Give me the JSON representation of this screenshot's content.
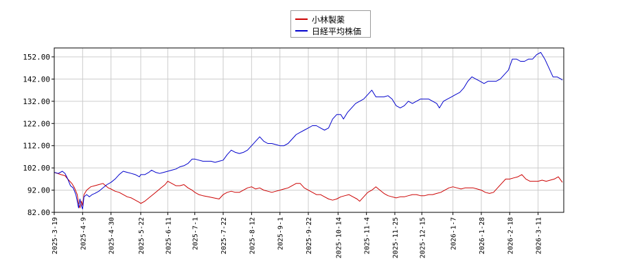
{
  "chart_data": {
    "type": "line",
    "legend_position": "top-center",
    "grid": true,
    "ylim": [
      82,
      156
    ],
    "yticks": [
      "82.00",
      "92.00",
      "102.00",
      "112.00",
      "122.00",
      "132.00",
      "142.00",
      "152.00"
    ],
    "ytick_values": [
      82,
      92,
      102,
      112,
      122,
      132,
      142,
      152
    ],
    "xtick_labels": [
      "2025-3-19",
      "2025-4-9",
      "2025-4-30",
      "2025-5-22",
      "2025-6-11",
      "2025-7-1",
      "2025-7-22",
      "2025-8-12",
      "2025-9-1",
      "2025-9-22",
      "2025-10-14",
      "2025-11-4",
      "2025-11-25",
      "2025-12-15",
      "2026-1-7",
      "2026-1-28",
      "2026-2-18",
      "2026-3-11"
    ],
    "xtick_positions": [
      0,
      21,
      42,
      64,
      84,
      104,
      125,
      146,
      167,
      188,
      210,
      231,
      252,
      272,
      295,
      316,
      337,
      358
    ],
    "x_max": 377,
    "series": [
      {
        "name": "小林製薬",
        "color": "#cc0000",
        "points": [
          [
            0,
            100
          ],
          [
            5,
            99
          ],
          [
            8,
            98.5
          ],
          [
            10,
            97
          ],
          [
            13,
            95
          ],
          [
            15,
            93
          ],
          [
            17,
            90
          ],
          [
            18,
            86
          ],
          [
            19,
            84
          ],
          [
            20,
            87
          ],
          [
            21,
            85
          ],
          [
            22,
            90
          ],
          [
            24,
            92
          ],
          [
            27,
            93.5
          ],
          [
            30,
            94
          ],
          [
            33,
            94.5
          ],
          [
            36,
            95
          ],
          [
            38,
            94
          ],
          [
            40,
            93
          ],
          [
            42,
            92.5
          ],
          [
            45,
            91.5
          ],
          [
            48,
            91
          ],
          [
            51,
            90
          ],
          [
            54,
            89
          ],
          [
            57,
            88.5
          ],
          [
            60,
            87.5
          ],
          [
            63,
            86.5
          ],
          [
            64,
            86
          ],
          [
            67,
            87
          ],
          [
            70,
            88.5
          ],
          [
            73,
            90
          ],
          [
            76,
            91.5
          ],
          [
            79,
            93
          ],
          [
            82,
            94.5
          ],
          [
            84,
            96
          ],
          [
            87,
            95
          ],
          [
            90,
            94
          ],
          [
            93,
            94
          ],
          [
            96,
            94.5
          ],
          [
            99,
            93
          ],
          [
            102,
            92
          ],
          [
            104,
            91
          ],
          [
            107,
            90
          ],
          [
            110,
            89.5
          ],
          [
            114,
            89
          ],
          [
            118,
            88.5
          ],
          [
            122,
            88
          ],
          [
            125,
            90
          ],
          [
            128,
            91
          ],
          [
            131,
            91.5
          ],
          [
            134,
            91
          ],
          [
            137,
            91
          ],
          [
            140,
            92
          ],
          [
            143,
            93
          ],
          [
            146,
            93.5
          ],
          [
            149,
            92.5
          ],
          [
            152,
            93
          ],
          [
            155,
            92
          ],
          [
            158,
            91.5
          ],
          [
            161,
            91
          ],
          [
            164,
            91.5
          ],
          [
            167,
            92
          ],
          [
            170,
            92.5
          ],
          [
            173,
            93
          ],
          [
            176,
            94
          ],
          [
            179,
            95
          ],
          [
            182,
            95
          ],
          [
            185,
            93
          ],
          [
            188,
            92
          ],
          [
            191,
            91
          ],
          [
            194,
            90
          ],
          [
            197,
            90
          ],
          [
            200,
            89
          ],
          [
            203,
            88
          ],
          [
            206,
            87.5
          ],
          [
            209,
            88
          ],
          [
            212,
            89
          ],
          [
            215,
            89.5
          ],
          [
            218,
            90
          ],
          [
            221,
            89
          ],
          [
            224,
            88
          ],
          [
            226,
            87
          ],
          [
            229,
            89
          ],
          [
            232,
            91
          ],
          [
            235,
            92
          ],
          [
            238,
            93.5
          ],
          [
            241,
            92
          ],
          [
            244,
            90.5
          ],
          [
            247,
            89.5
          ],
          [
            250,
            89
          ],
          [
            253,
            88.5
          ],
          [
            256,
            89
          ],
          [
            259,
            89
          ],
          [
            262,
            89.5
          ],
          [
            265,
            90
          ],
          [
            268,
            90
          ],
          [
            271,
            89.5
          ],
          [
            274,
            89.5
          ],
          [
            277,
            90
          ],
          [
            280,
            90
          ],
          [
            283,
            90.5
          ],
          [
            286,
            91
          ],
          [
            289,
            92
          ],
          [
            292,
            93
          ],
          [
            295,
            93.5
          ],
          [
            298,
            93
          ],
          [
            301,
            92.5
          ],
          [
            304,
            93
          ],
          [
            307,
            93
          ],
          [
            310,
            93
          ],
          [
            313,
            92.5
          ],
          [
            316,
            92
          ],
          [
            319,
            91
          ],
          [
            322,
            90.5
          ],
          [
            325,
            91
          ],
          [
            328,
            93
          ],
          [
            331,
            95
          ],
          [
            334,
            97
          ],
          [
            337,
            97
          ],
          [
            340,
            97.5
          ],
          [
            343,
            98
          ],
          [
            346,
            99
          ],
          [
            349,
            97
          ],
          [
            352,
            96
          ],
          [
            355,
            96
          ],
          [
            358,
            96
          ],
          [
            361,
            96.5
          ],
          [
            364,
            96
          ],
          [
            367,
            96.5
          ],
          [
            370,
            97
          ],
          [
            373,
            98
          ],
          [
            376,
            95.5
          ]
        ]
      },
      {
        "name": "日経平均株価",
        "color": "#0000cc",
        "points": [
          [
            0,
            100
          ],
          [
            3,
            99.5
          ],
          [
            6,
            100.5
          ],
          [
            8,
            99.5
          ],
          [
            10,
            97
          ],
          [
            12,
            94
          ],
          [
            14,
            93
          ],
          [
            16,
            90
          ],
          [
            17,
            87
          ],
          [
            18,
            84
          ],
          [
            19,
            88
          ],
          [
            20,
            85
          ],
          [
            21,
            83.5
          ],
          [
            22,
            89
          ],
          [
            24,
            90
          ],
          [
            26,
            89
          ],
          [
            28,
            90
          ],
          [
            30,
            90.5
          ],
          [
            33,
            91.5
          ],
          [
            36,
            93
          ],
          [
            39,
            94.5
          ],
          [
            42,
            95.5
          ],
          [
            45,
            97
          ],
          [
            48,
            99
          ],
          [
            51,
            100.5
          ],
          [
            54,
            100
          ],
          [
            57,
            99.5
          ],
          [
            60,
            99
          ],
          [
            63,
            98
          ],
          [
            64,
            99
          ],
          [
            67,
            99
          ],
          [
            70,
            100
          ],
          [
            72,
            101
          ],
          [
            75,
            100
          ],
          [
            78,
            99.5
          ],
          [
            81,
            100
          ],
          [
            84,
            100.5
          ],
          [
            87,
            101
          ],
          [
            90,
            101.5
          ],
          [
            93,
            102.5
          ],
          [
            96,
            103
          ],
          [
            99,
            104
          ],
          [
            102,
            106
          ],
          [
            104,
            106
          ],
          [
            107,
            105.5
          ],
          [
            110,
            105
          ],
          [
            113,
            105
          ],
          [
            116,
            105
          ],
          [
            119,
            104.5
          ],
          [
            122,
            105
          ],
          [
            125,
            105.5
          ],
          [
            128,
            108
          ],
          [
            131,
            110
          ],
          [
            134,
            109
          ],
          [
            137,
            108.5
          ],
          [
            140,
            109
          ],
          [
            143,
            110
          ],
          [
            146,
            112
          ],
          [
            149,
            114
          ],
          [
            152,
            116
          ],
          [
            155,
            114
          ],
          [
            158,
            113
          ],
          [
            161,
            113
          ],
          [
            164,
            112.5
          ],
          [
            167,
            112
          ],
          [
            170,
            112
          ],
          [
            173,
            113
          ],
          [
            176,
            115
          ],
          [
            179,
            117
          ],
          [
            182,
            118
          ],
          [
            185,
            119
          ],
          [
            188,
            120
          ],
          [
            191,
            121
          ],
          [
            194,
            121
          ],
          [
            197,
            120
          ],
          [
            200,
            119
          ],
          [
            203,
            120
          ],
          [
            206,
            124
          ],
          [
            209,
            126
          ],
          [
            212,
            126
          ],
          [
            214,
            124
          ],
          [
            217,
            127
          ],
          [
            220,
            129
          ],
          [
            223,
            131
          ],
          [
            226,
            132
          ],
          [
            229,
            133
          ],
          [
            232,
            135
          ],
          [
            235,
            137
          ],
          [
            238,
            134
          ],
          [
            241,
            134
          ],
          [
            244,
            134
          ],
          [
            247,
            134.5
          ],
          [
            250,
            133
          ],
          [
            253,
            130
          ],
          [
            256,
            129
          ],
          [
            259,
            130
          ],
          [
            262,
            132
          ],
          [
            265,
            131
          ],
          [
            268,
            132
          ],
          [
            271,
            133
          ],
          [
            274,
            133
          ],
          [
            277,
            133
          ],
          [
            280,
            132
          ],
          [
            283,
            131
          ],
          [
            285,
            129
          ],
          [
            288,
            132
          ],
          [
            291,
            133
          ],
          [
            294,
            134
          ],
          [
            297,
            135
          ],
          [
            300,
            136
          ],
          [
            303,
            138
          ],
          [
            306,
            141
          ],
          [
            309,
            143
          ],
          [
            312,
            142
          ],
          [
            315,
            141
          ],
          [
            318,
            140
          ],
          [
            321,
            141
          ],
          [
            324,
            141
          ],
          [
            327,
            141
          ],
          [
            330,
            142
          ],
          [
            333,
            144
          ],
          [
            336,
            146
          ],
          [
            339,
            151
          ],
          [
            342,
            151
          ],
          [
            345,
            150
          ],
          [
            348,
            150
          ],
          [
            351,
            151
          ],
          [
            354,
            151
          ],
          [
            357,
            153
          ],
          [
            360,
            154
          ],
          [
            363,
            151
          ],
          [
            366,
            147
          ],
          [
            369,
            143
          ],
          [
            372,
            143
          ],
          [
            375,
            142
          ],
          [
            376,
            141.5
          ]
        ]
      }
    ]
  }
}
